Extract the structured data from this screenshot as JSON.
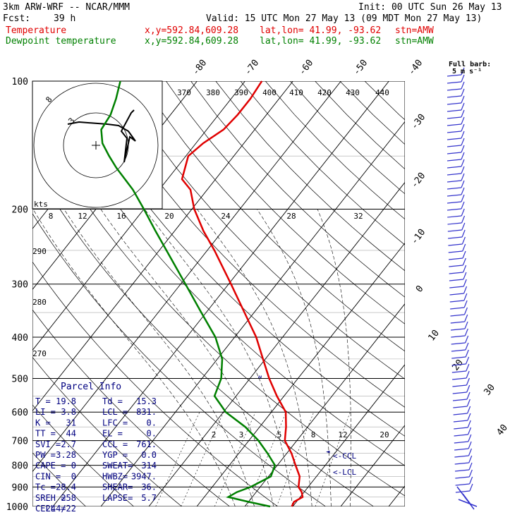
{
  "header": {
    "model": "3km ARW-WRF -- NCAR/MMM",
    "init": "Init: 00 UTC Sun 26 May 13",
    "fcst_label": "Fcst:",
    "fcst_hours": "39 h",
    "valid": "Valid: 15 UTC Mon 27 May 13 (09 MDT Mon 27 May 13)"
  },
  "legend": [
    {
      "label": "Temperature",
      "xy": "x,y=592.84,609.28",
      "latlon": "lat,lon= 41.99, -93.62",
      "stn": "stn=AMW",
      "color": "#e00000"
    },
    {
      "label": "Dewpoint temperature",
      "xy": "x,y=592.84,609.28",
      "latlon": "lat,lon= 41.99, -93.62",
      "stn": "stn=AMW",
      "color": "#008000"
    }
  ],
  "full_barb": {
    "line1": "Full barb:",
    "line2": "5 m s⁻¹"
  },
  "parcel_info": {
    "title": "Parcel Info",
    "rows": [
      [
        "T  =",
        "19.8",
        "Td =",
        "15.3"
      ],
      [
        "LI =",
        "3.8",
        "LCL =",
        "831."
      ],
      [
        "K  =",
        "31",
        "LFC =",
        "0."
      ],
      [
        "TT =",
        "44",
        "EL  =",
        "0."
      ],
      [
        "SVI =",
        "2.7",
        "CCL =",
        "761."
      ],
      [
        "PW =",
        "3.28",
        "YGP =",
        "0.0"
      ],
      [
        "CAPE =",
        "0",
        "SWEAT=",
        "314"
      ],
      [
        "CIN =",
        "0",
        "HWBZ=",
        "3947."
      ],
      [
        "Tc =",
        "28.4",
        "SHEAR=",
        "36."
      ],
      [
        "SREH =",
        "258",
        "LAPSE=",
        "5.7"
      ],
      [
        "CELL =",
        "244/22",
        "",
        ""
      ]
    ]
  },
  "hodograph": {
    "units": "kts",
    "ring_labels": [
      "8",
      "12",
      "16",
      "20",
      "24",
      "28",
      "32"
    ],
    "ring_marks": [
      "8",
      "3"
    ]
  },
  "annotations": {
    "ccl": "<-CCL",
    "lcl": "<-LCL",
    "ccl_mark": "◄",
    "bracket": "“"
  },
  "colors": {
    "temperature": "#e00000",
    "dewpoint": "#008000",
    "grid": "#000000",
    "barbs": "#3333cc",
    "text_blue": "#000080"
  },
  "chart_data": {
    "type": "line",
    "title": "",
    "xlabel": "",
    "ylabel": "",
    "y_scale": "log pressure (skew-T)",
    "pressure_labels": [
      "100",
      "200",
      "300",
      "400",
      "500",
      "600",
      "700",
      "800",
      "900",
      "1000"
    ],
    "isotherm_labels": [
      "-80",
      "-70",
      "-60",
      "-50",
      "-40",
      "-30",
      "-20",
      "-10",
      "0",
      "10",
      "20",
      "30",
      "40"
    ],
    "theta_labels": [
      "270",
      "280",
      "290",
      "370",
      "380",
      "390",
      "400",
      "410",
      "420",
      "430",
      "440"
    ],
    "mixing_ratio_labels": [
      "2",
      "3",
      "5",
      "8",
      "12",
      "20"
    ],
    "series": [
      {
        "name": "Temperature",
        "points": [
          [
            1000,
            19.8
          ],
          [
            975,
            19.5
          ],
          [
            950,
            20.5
          ],
          [
            925,
            19.5
          ],
          [
            900,
            18.0
          ],
          [
            850,
            16.5
          ],
          [
            800,
            13.8
          ],
          [
            750,
            11.0
          ],
          [
            700,
            7.5
          ],
          [
            650,
            5.5
          ],
          [
            600,
            3.0
          ],
          [
            550,
            -1.5
          ],
          [
            500,
            -6.0
          ],
          [
            450,
            -10.5
          ],
          [
            400,
            -15.5
          ],
          [
            350,
            -22.0
          ],
          [
            300,
            -29.5
          ],
          [
            250,
            -38.5
          ],
          [
            225,
            -44.0
          ],
          [
            200,
            -49.5
          ],
          [
            180,
            -53.5
          ],
          [
            170,
            -57.0
          ],
          [
            150,
            -59.5
          ],
          [
            140,
            -58.5
          ],
          [
            130,
            -56.5
          ],
          [
            120,
            -56.0
          ],
          [
            110,
            -56.0
          ],
          [
            100,
            -56.5
          ]
        ]
      },
      {
        "name": "Dewpoint temperature",
        "points": [
          [
            1000,
            15.3
          ],
          [
            975,
            10.0
          ],
          [
            950,
            5.0
          ],
          [
            925,
            6.0
          ],
          [
            900,
            8.0
          ],
          [
            850,
            10.5
          ],
          [
            800,
            9.5
          ],
          [
            750,
            6.0
          ],
          [
            700,
            2.0
          ],
          [
            650,
            -3.0
          ],
          [
            600,
            -9.5
          ],
          [
            550,
            -14.5
          ],
          [
            500,
            -16.0
          ],
          [
            450,
            -19.0
          ],
          [
            400,
            -24.0
          ],
          [
            350,
            -31.0
          ],
          [
            300,
            -39.0
          ],
          [
            250,
            -48.5
          ],
          [
            225,
            -54.0
          ],
          [
            200,
            -60.0
          ],
          [
            180,
            -65.5
          ],
          [
            160,
            -72.5
          ],
          [
            150,
            -76.0
          ],
          [
            140,
            -79.5
          ],
          [
            130,
            -82.0
          ],
          [
            120,
            -82.5
          ],
          [
            110,
            -84.0
          ],
          [
            100,
            -86.0
          ]
        ]
      }
    ]
  }
}
